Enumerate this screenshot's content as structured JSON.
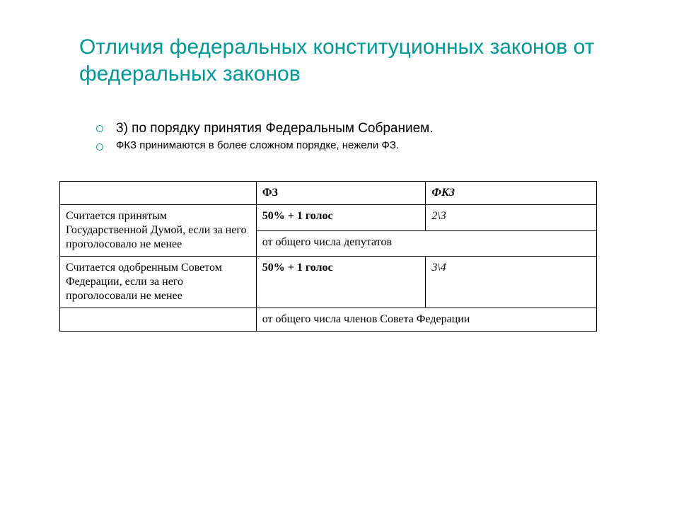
{
  "title": "Отличия федеральных конституционных законов от федеральных законов",
  "bullets": {
    "b1": "3) по порядку принятия Федеральным Собранием.",
    "b2": "ФКЗ принимаются в более сложном порядке, нежели ФЗ."
  },
  "table": {
    "header": {
      "c1": "",
      "c2": "ФЗ",
      "c3": "ФКЗ"
    },
    "r1": {
      "c1": "Считается принятым Государственной Думой, если за него проголосовало не менее",
      "c2": "50% + 1 голос",
      "c3": "2\\3"
    },
    "r1note": "от общего числа депутатов",
    "r2": {
      "c1": "Считается одобренным Советом Федерации, если за него проголосовали не менее",
      "c2": "50% + 1 голос",
      "c3": "3\\4"
    },
    "r2note": "от общего числа членов Совета Федерации"
  },
  "colors": {
    "accent": "#009999",
    "text": "#000000",
    "border": "#000000",
    "background": "#ffffff"
  },
  "fonts": {
    "title": {
      "family": "Verdana",
      "size_pt": 22,
      "weight": 400
    },
    "bullet_large": {
      "family": "Verdana",
      "size_pt": 14
    },
    "bullet_small": {
      "family": "Verdana",
      "size_pt": 11
    },
    "table": {
      "family": "Times New Roman",
      "size_pt": 12
    }
  }
}
